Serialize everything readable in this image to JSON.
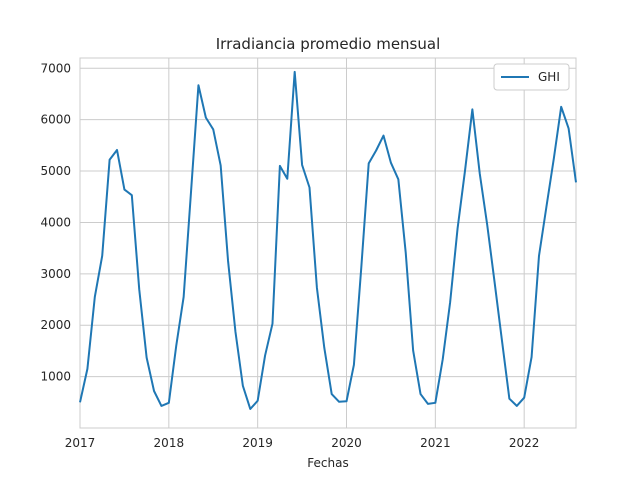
{
  "chart_data": {
    "type": "line",
    "title": "Irradiancia promedio mensual",
    "xlabel": "Fechas",
    "ylabel": "",
    "x_tick_labels": [
      "2017",
      "2018",
      "2019",
      "2020",
      "2021",
      "2022"
    ],
    "y_tick_labels": [
      "1000",
      "2000",
      "3000",
      "4000",
      "5000",
      "6000",
      "7000"
    ],
    "y_ticks": [
      1000,
      2000,
      3000,
      4000,
      5000,
      6000,
      7000
    ],
    "xlim": [
      "2017-01",
      "2022-08"
    ],
    "ylim": [
      0,
      7200
    ],
    "grid": true,
    "legend_position": "top-right",
    "series": [
      {
        "name": "GHI",
        "color": "#1f77b4",
        "x": [
          "2017-01",
          "2017-02",
          "2017-03",
          "2017-04",
          "2017-05",
          "2017-06",
          "2017-07",
          "2017-08",
          "2017-09",
          "2017-10",
          "2017-11",
          "2017-12",
          "2018-01",
          "2018-02",
          "2018-03",
          "2018-04",
          "2018-05",
          "2018-06",
          "2018-07",
          "2018-08",
          "2018-09",
          "2018-10",
          "2018-11",
          "2018-12",
          "2019-01",
          "2019-02",
          "2019-03",
          "2019-04",
          "2019-05",
          "2019-06",
          "2019-07",
          "2019-08",
          "2019-09",
          "2019-10",
          "2019-11",
          "2019-12",
          "2020-01",
          "2020-02",
          "2020-03",
          "2020-04",
          "2020-05",
          "2020-06",
          "2020-07",
          "2020-08",
          "2020-09",
          "2020-10",
          "2020-11",
          "2020-12",
          "2021-01",
          "2021-02",
          "2021-03",
          "2021-04",
          "2021-05",
          "2021-06",
          "2021-07",
          "2021-08",
          "2021-09",
          "2021-10",
          "2021-11",
          "2021-12",
          "2022-01",
          "2022-02",
          "2022-03",
          "2022-04",
          "2022-05",
          "2022-06",
          "2022-07",
          "2022-08"
        ],
        "values": [
          500,
          1150,
          2550,
          3350,
          5220,
          5410,
          4640,
          4530,
          2700,
          1370,
          720,
          430,
          490,
          1600,
          2550,
          4600,
          6670,
          6040,
          5810,
          5110,
          3250,
          1870,
          820,
          370,
          530,
          1410,
          2030,
          5100,
          4850,
          6930,
          5120,
          4680,
          2730,
          1560,
          660,
          510,
          520,
          1230,
          3130,
          5150,
          5400,
          5690,
          5160,
          4840,
          3410,
          1510,
          660,
          470,
          490,
          1340,
          2450,
          3880,
          5000,
          6200,
          4950,
          3960,
          2840,
          1700,
          570,
          430,
          590,
          1380,
          3350,
          4300,
          5240,
          6250,
          5830,
          4780
        ]
      }
    ]
  }
}
